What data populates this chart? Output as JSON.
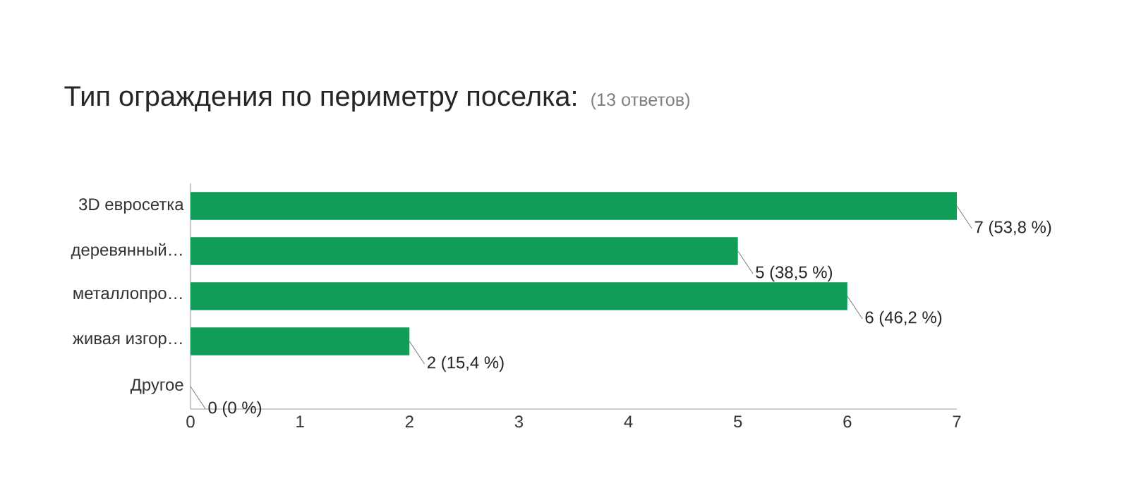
{
  "chart_data": {
    "type": "bar",
    "orientation": "horizontal",
    "title": "Тип ограждения по периметру поселка:",
    "subtitle": "(13 ответов)",
    "categories": [
      "3D евросетка",
      "деревянный…",
      "металлопро…",
      "живая изгор…",
      "Другое"
    ],
    "values": [
      7,
      5,
      6,
      2,
      0
    ],
    "value_labels": [
      "7 (53,8 %)",
      "5 (38,5 %)",
      "6 (46,2 %)",
      "2 (15,4 %)",
      "0 (0 %)"
    ],
    "color": "#0f9d58",
    "xlim": [
      0,
      7
    ],
    "xticks": [
      0,
      1,
      2,
      3,
      4,
      5,
      6,
      7
    ],
    "grid": false
  }
}
